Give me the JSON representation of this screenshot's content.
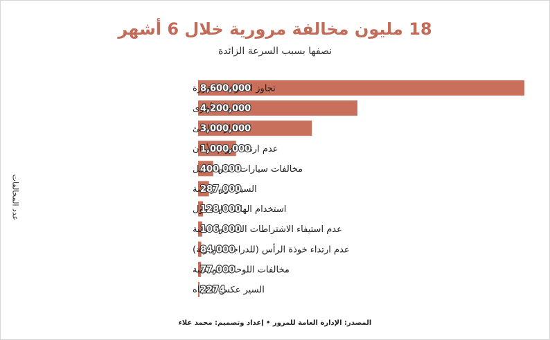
{
  "title": "18 مليون مخالفة مرورية خلال 6 أشهر",
  "subtitle": "نصفها بسبب السرعة الزائدة",
  "source": "المصدر: الإدارة العامة للمرور • إعداد وتصميم: محمد علاء",
  "colors": {
    "bar": "#c8705c",
    "title": "#c26b59"
  },
  "chart_data": {
    "type": "bar",
    "orientation": "horizontal",
    "title": "18 مليون مخالفة مرورية خلال 6 أشهر",
    "subtitle": "نصفها بسبب السرعة الزائدة",
    "ylabel": "عدد المخالفات",
    "xlim": [
      0,
      8600000
    ],
    "grid": false,
    "legend": "none",
    "categories": [
      "تجاوز السرعة المقررة",
      "مخالفات أخرى",
      "الانتظار الخاطئ",
      "عدم ارتداء حزام الأمان",
      "مخالفات سيارات النقل الثقيل",
      "السير دون رخصة",
      "استخدام الهاتف المحمول",
      "عدم استيفاء الاشتراطات الصلاحية الفنية",
      "عدم ارتداء خوذة الرأس (للدراجات النارية)",
      "مخالفات اللوحات المعدنية",
      "السير عكس الاتجاه"
    ],
    "values": [
      8600000,
      4200000,
      3000000,
      1000000,
      400000,
      287000,
      128000,
      106000,
      84000,
      77000,
      2274
    ],
    "value_labels": [
      "8,600,000",
      "4,200,000",
      "3,000,000",
      "1,000,000",
      "400,000",
      "287,000",
      "128,000",
      "106,000",
      "84,000",
      "77,000",
      "2274"
    ]
  }
}
